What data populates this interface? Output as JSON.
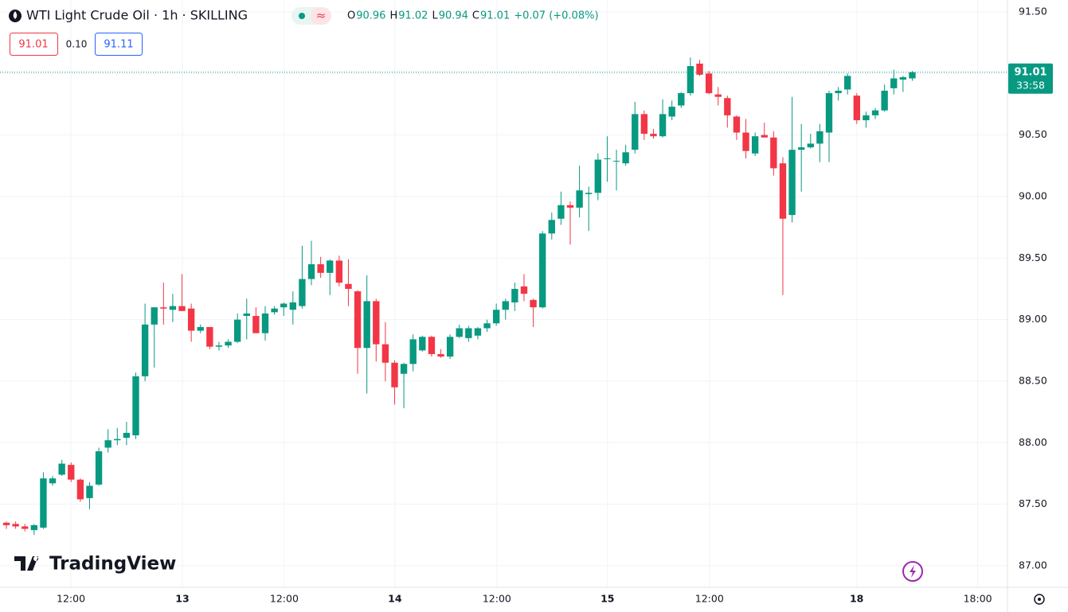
{
  "chart_data": {
    "type": "candlestick",
    "title": "WTI Light Crude Oil · 1h · SKILLING",
    "ohlc_legend": [
      {
        "label": "O",
        "value": "90.96"
      },
      {
        "label": "H",
        "value": "91.02"
      },
      {
        "label": "L",
        "value": "90.94"
      },
      {
        "label": "C",
        "value": "91.01"
      }
    ],
    "change": "+0.07 (+0.08%)",
    "sell_price": "91.01",
    "spread": "0.10",
    "buy_price": "91.11",
    "last_price_label": "91.01",
    "countdown": "33:58",
    "logo": "TradingView",
    "up_color": "#089981",
    "down_color": "#f23645",
    "open": [
      87.35,
      87.34,
      87.32,
      87.29,
      87.31,
      87.67,
      87.74,
      87.82,
      87.7,
      87.55,
      87.66,
      87.96,
      88.02,
      88.04,
      88.06,
      88.54,
      88.96,
      89.1,
      89.08,
      89.11,
      89.09,
      88.91,
      88.94,
      88.78,
      88.79,
      88.82,
      89.03,
      89.03,
      88.89,
      89.06,
      89.1,
      89.08,
      89.11,
      89.33,
      89.45,
      89.38,
      89.48,
      89.29,
      89.23,
      88.77,
      89.15,
      88.8,
      88.65,
      88.56,
      88.64,
      88.75,
      88.86,
      88.72,
      88.7,
      88.86,
      88.85,
      88.87,
      88.93,
      88.97,
      89.08,
      89.14,
      89.27,
      89.16,
      89.1,
      89.7,
      89.82,
      89.93,
      89.91,
      90.02,
      90.03,
      90.31,
      90.29,
      90.27,
      90.38,
      90.67,
      90.51,
      90.49,
      90.65,
      90.74,
      90.84,
      91.08,
      91.0,
      90.83,
      90.8,
      90.65,
      90.52,
      90.35,
      90.5,
      90.48,
      90.27,
      89.85,
      90.38,
      90.4,
      90.43,
      90.52,
      90.84,
      90.87,
      90.82,
      90.62,
      90.66,
      90.7,
      90.88,
      90.95,
      90.96
    ],
    "high": [
      87.36,
      87.36,
      87.34,
      87.34,
      87.76,
      87.73,
      87.86,
      87.84,
      87.71,
      87.68,
      87.96,
      88.11,
      88.12,
      88.17,
      88.57,
      89.13,
      89.1,
      89.3,
      89.21,
      89.37,
      89.13,
      88.96,
      88.94,
      88.82,
      88.84,
      89.05,
      89.17,
      89.1,
      89.11,
      89.11,
      89.14,
      89.23,
      89.6,
      89.64,
      89.51,
      89.49,
      89.52,
      89.49,
      89.24,
      89.36,
      89.17,
      88.98,
      88.67,
      88.65,
      88.88,
      88.87,
      88.87,
      88.76,
      88.88,
      88.96,
      88.95,
      88.94,
      89.0,
      89.13,
      89.17,
      89.3,
      89.37,
      89.17,
      89.72,
      89.87,
      90.04,
      89.96,
      90.25,
      90.08,
      90.35,
      90.49,
      90.38,
      90.42,
      90.77,
      90.7,
      90.55,
      90.79,
      90.78,
      90.85,
      91.13,
      91.11,
      91.02,
      90.89,
      90.82,
      90.66,
      90.63,
      90.52,
      90.6,
      90.53,
      90.32,
      90.81,
      90.59,
      90.51,
      90.59,
      90.86,
      90.89,
      91.0,
      90.84,
      90.69,
      90.72,
      90.91,
      91.03,
      90.98,
      91.02
    ],
    "low": [
      87.3,
      87.3,
      87.28,
      87.25,
      87.3,
      87.65,
      87.73,
      87.68,
      87.52,
      87.46,
      87.65,
      87.92,
      87.98,
      87.98,
      88.03,
      88.5,
      88.61,
      88.96,
      88.98,
      89.07,
      88.82,
      88.89,
      88.76,
      88.75,
      88.77,
      88.81,
      88.84,
      88.89,
      88.83,
      89.04,
      89.03,
      88.96,
      89.09,
      89.28,
      89.34,
      89.2,
      89.27,
      89.11,
      88.56,
      88.4,
      88.66,
      88.5,
      88.31,
      88.28,
      88.58,
      88.74,
      88.7,
      88.69,
      88.68,
      88.85,
      88.82,
      88.84,
      88.9,
      88.95,
      89.0,
      89.07,
      89.15,
      88.94,
      89.09,
      89.65,
      89.77,
      89.61,
      89.83,
      89.72,
      89.97,
      90.12,
      90.05,
      90.25,
      90.35,
      90.46,
      90.47,
      90.48,
      90.62,
      90.72,
      90.82,
      90.98,
      90.83,
      90.74,
      90.56,
      90.46,
      90.31,
      90.33,
      90.48,
      90.17,
      89.2,
      89.79,
      90.04,
      90.39,
      90.28,
      90.28,
      90.78,
      90.83,
      90.59,
      90.56,
      90.63,
      90.69,
      90.83,
      90.85,
      90.94
    ],
    "close": [
      87.33,
      87.32,
      87.3,
      87.33,
      87.71,
      87.71,
      87.83,
      87.7,
      87.54,
      87.65,
      87.93,
      88.02,
      88.03,
      88.08,
      88.54,
      88.96,
      89.1,
      89.09,
      89.11,
      89.07,
      88.91,
      88.94,
      88.78,
      88.79,
      88.82,
      89.0,
      89.05,
      88.89,
      89.05,
      89.09,
      89.13,
      89.14,
      89.33,
      89.45,
      89.38,
      89.48,
      89.3,
      89.25,
      88.77,
      89.15,
      88.8,
      88.65,
      88.45,
      88.64,
      88.84,
      88.86,
      88.72,
      88.7,
      88.86,
      88.93,
      88.93,
      88.93,
      88.97,
      89.08,
      89.15,
      89.25,
      89.21,
      89.1,
      89.7,
      89.81,
      89.93,
      89.91,
      90.05,
      90.03,
      90.3,
      90.31,
      90.29,
      90.36,
      90.67,
      90.51,
      90.49,
      90.67,
      90.73,
      90.84,
      91.06,
      90.99,
      90.84,
      90.81,
      90.66,
      90.52,
      90.37,
      90.49,
      90.48,
      90.23,
      89.82,
      90.38,
      90.4,
      90.43,
      90.53,
      90.84,
      90.86,
      90.98,
      90.62,
      90.66,
      90.7,
      90.86,
      90.96,
      90.97,
      91.01
    ],
    "xlim": [
      -0.69,
      108.3
    ],
    "xticks": [
      {
        "value": 6.98,
        "label": "12:00"
      },
      {
        "value": 19.04,
        "label": "13"
      },
      {
        "value": 30.06,
        "label": "12:00"
      },
      {
        "value": 42.03,
        "label": "14"
      },
      {
        "value": 53.06,
        "label": "12:00"
      },
      {
        "value": 65.03,
        "label": "15"
      },
      {
        "value": 76.06,
        "label": "12:00"
      },
      {
        "value": 91.99,
        "label": "18"
      },
      {
        "value": 105.08,
        "label": "18:00"
      }
    ],
    "ylim": [
      86.825,
      91.597
    ],
    "yticks": [
      {
        "value": 87.0,
        "label": "87.00"
      },
      {
        "value": 87.5,
        "label": "87.50"
      },
      {
        "value": 88.0,
        "label": "88.00"
      },
      {
        "value": 88.5,
        "label": "88.50"
      },
      {
        "value": 89.0,
        "label": "89.00"
      },
      {
        "value": 89.5,
        "label": "89.50"
      },
      {
        "value": 90.0,
        "label": "90.00"
      },
      {
        "value": 90.5,
        "label": "90.50"
      },
      {
        "value": 91.0,
        "label": "91.00"
      },
      {
        "value": 91.5,
        "label": "91.50"
      }
    ],
    "grid": true
  }
}
